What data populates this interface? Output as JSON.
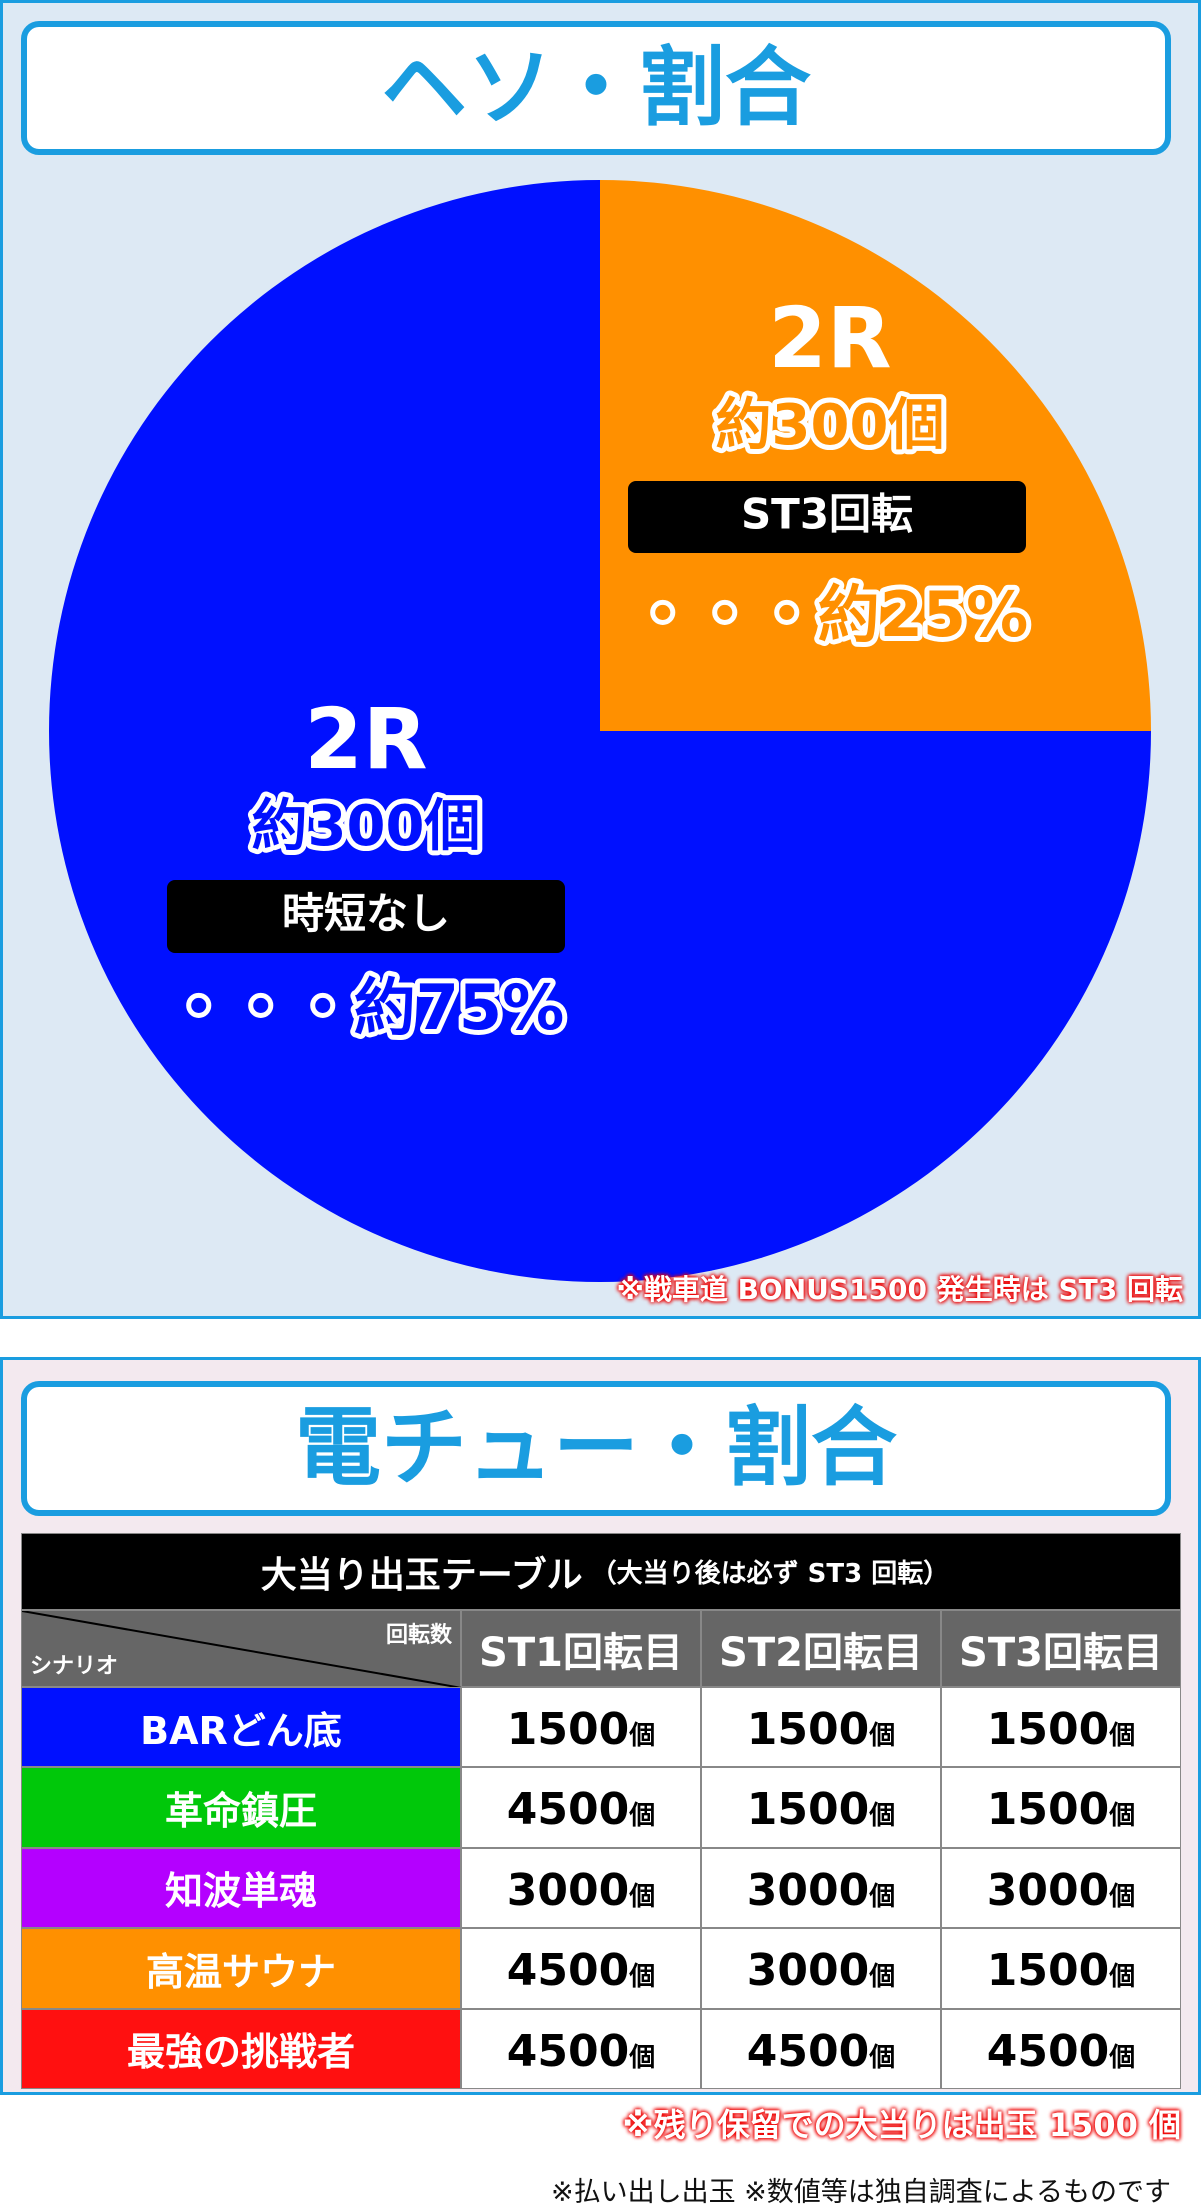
{
  "chart_data": {
    "type": "pie",
    "title": "ヘソ・割合",
    "values": [
      25,
      75
    ],
    "value_labels": [
      "・・・約25%",
      "・・・約75%"
    ],
    "colors": [
      "#ff9000",
      "#0010ff"
    ],
    "labels": [
      [
        "2R",
        "約300個",
        "ST3回転"
      ],
      [
        "2R",
        "約300個",
        "時短なし"
      ]
    ],
    "note": "※戦車道 BONUS1500 発生時は ST3 回転"
  },
  "section2": {
    "title": "電チュー・割合"
  },
  "table": {
    "caption": "大当り出玉テーブル",
    "subcaption": "（大当り後は必ず ST3 回転）",
    "corner_top": "回転数",
    "corner_bottom": "シナリオ",
    "columns": [
      "ST1回転目",
      "ST2回転目",
      "ST3回転目"
    ],
    "unit": "個",
    "rows": [
      {
        "name": "BARどん底",
        "color": "#0010ff",
        "values": [
          1500,
          1500,
          1500
        ]
      },
      {
        "name": "革命鎮圧",
        "color": "#00c80a",
        "values": [
          4500,
          1500,
          1500
        ]
      },
      {
        "name": "知波単魂",
        "color": "#b400ff",
        "values": [
          3000,
          3000,
          3000
        ]
      },
      {
        "name": "高温サウナ",
        "color": "#ff9000",
        "values": [
          4500,
          3000,
          1500
        ]
      },
      {
        "name": "最強の挑戦者",
        "color": "#ff1010",
        "values": [
          4500,
          4500,
          4500
        ]
      }
    ]
  },
  "footnote": "※残り保留での大当りは出玉 1500 個",
  "source": "※払い出し出玉 ※数値等は独自調査によるものです"
}
